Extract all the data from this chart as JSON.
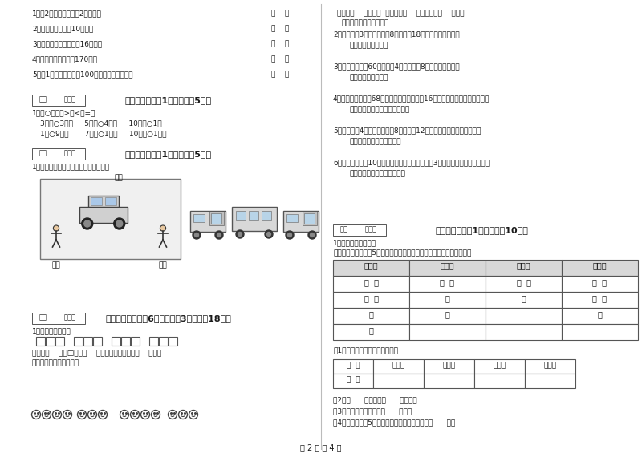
{
  "bg_color": "#ffffff",
  "text_color": "#1a1a1a",
  "border_color": "#555555",
  "page_text": "第 2 页 共 4 页",
  "left_col": {
    "section5_items": [
      "1、过2点最多可以连成2条线段。",
      "2、一块橡皮擦的厚10厘米。",
      "3、一枝自动水笔的长是16厘米。",
      "4、小红蕾蕾的身高有170米。",
      "5、长1米的木棒要比长100厘米的铁丝短一些。"
    ],
    "section6_title": "六、比一比（共1大题，共计5分）",
    "section6_content": [
      "1．在○里填上>、<或=。",
      "3厘米○3分米     5毫米○4厘米     10厘米○1米",
      "1米○9分米       7毫米○1分米     10厘米○1分米"
    ],
    "section7_title": "七、连一连（共1大题，共计5分）",
    "section7_content": "1．请你连一连，下面分别是谁看到的？",
    "section7_label_top": "小红",
    "section7_label_bot_left": "小东",
    "section7_label_bot_right": "小明",
    "section8_title": "八、解决问题（共6小题，每题3分，共计18分）",
    "section8_content1": "1．我会解决问题。",
    "section8_content2": "一共有（    ）个□，每（    ）个一组，平均分成（    ）组。",
    "section8_content3": "列式＿＿＿＿＿＿＿＿＿"
  },
  "right_col": {
    "section8_cont_title": "一共有（    ）个笑脸  平均分成（    ）组，每组（    ）个。",
    "section8_cont_sub": "列式＿＿＿＿＿＿＿＿＿",
    "q2": "2．食堂运来3车大米，每车8袋，吃掉18袋后，还剩多少袋？",
    "q2_ans": "答：还剩＿＿＿袋。",
    "q3": "3．商店有自行车60辆，卖了4天，每天卖8辆，还剩多少辆？",
    "q3_ans": "答：还剩＿＿＿辆。",
    "q4": "4．二年级有男学生68人，女学生比男学生少16人，二年级共有学生多少人？",
    "q4_ans": "答：二年级共有学生＿＿＿人。",
    "q5": "5．果园里有4行苹果树，每行8棵，还有12棵梨树，一共有多少棵果树？",
    "q5_ans": "答：一共有＿＿＿棵果树。",
    "q6": "6．小东上午做了10道数学题，下午做的比上午多3道，小东一共做了多少道？",
    "q6_ans": "答：小东一共做了＿＿＿道。",
    "section10_title": "十、综合题（共1大题，共计10分）",
    "section10_intro": "1．我是小小统计员。",
    "section10_desc": "欢迎站在马路边，对5分钟内经过的车辆进行了统计，情况如下图所示。",
    "tally_headers": [
      "小汽车",
      "面包车",
      "中巴车",
      "电瓶车"
    ],
    "tally_rows": [
      [
        "正  正",
        "正  正",
        "正  正",
        "正  正"
      ],
      [
        "正  正",
        "正",
        "下",
        "正  正"
      ],
      [
        "正",
        "下",
        "",
        "正"
      ],
      [
        "下",
        "",
        "",
        ""
      ]
    ],
    "sub1": "（1）把统计的结果填在下表中。",
    "table_headers": [
      "种  类",
      "小汽车",
      "面包车",
      "中巴车",
      "电瓶车"
    ],
    "table_row_label": "辆  数",
    "sub2": "（2）（      ）最多，（      ）最少。",
    "sub3": "（3）中巴车比小汽车少（      ）辆。",
    "sub4": "（4）如果再观察5分钟，经过最多的车辆可能是（      ）。"
  }
}
